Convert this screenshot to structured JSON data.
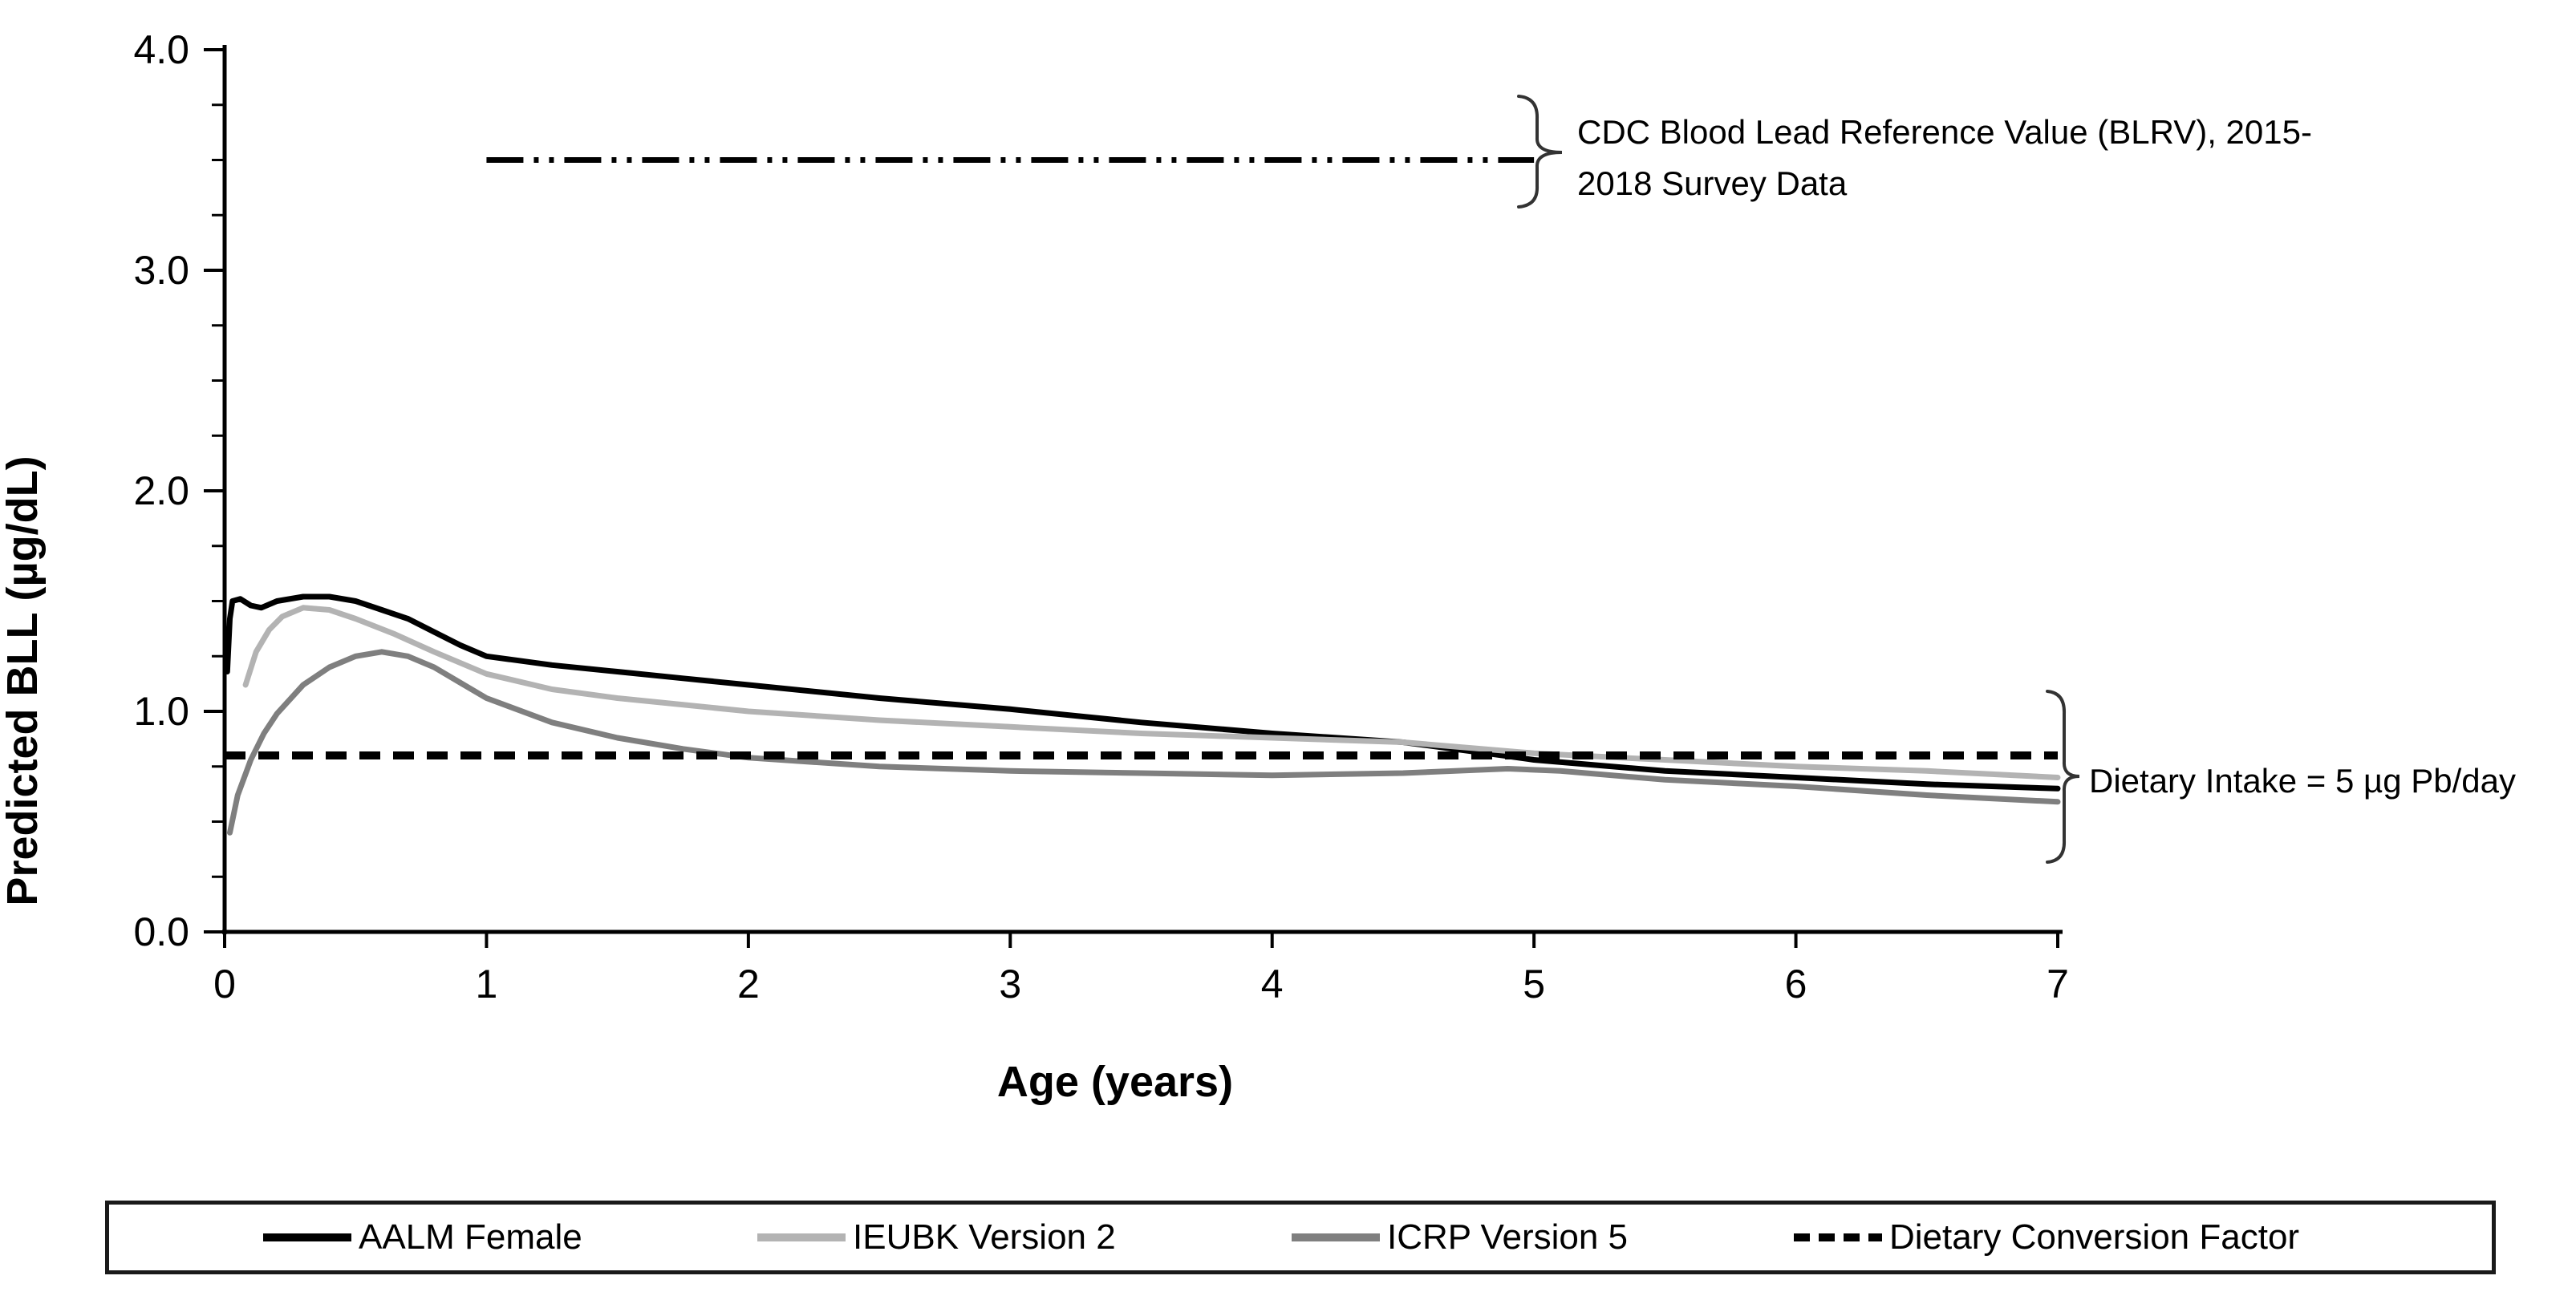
{
  "annotations": {
    "cdc": {
      "line1": "CDC Blood Lead Reference Value (BLRV), 2015-",
      "line2": "2018 Survey Data",
      "y_value": 3.5,
      "x_start": 1.0,
      "x_end": 5.0
    },
    "dietary": {
      "label": "Dietary Intake = 5 µg Pb/day",
      "y_value": 0.8
    }
  },
  "legend": {
    "items": [
      {
        "label": "AALM Female",
        "color": "#000000",
        "dash": null
      },
      {
        "label": "IEUBK Version 2",
        "color": "#b3b3b3",
        "dash": null
      },
      {
        "label": "ICRP Version 5",
        "color": "#7f7f7f",
        "dash": null
      },
      {
        "label": "Dietary Conversion Factor",
        "color": "#000000",
        "dash": "20 11"
      }
    ]
  },
  "chart_data": {
    "type": "line",
    "title": "",
    "xlabel": "Age (years)",
    "ylabel": "Predicted BLL (µg/dL)",
    "xlim": [
      0,
      7
    ],
    "ylim": [
      0,
      4
    ],
    "xticks": [
      0,
      1,
      2,
      3,
      4,
      5,
      6,
      7
    ],
    "yticks": [
      {
        "value": 0,
        "label": "0.0"
      },
      {
        "value": 1,
        "label": "1.0"
      },
      {
        "value": 2,
        "label": "2.0"
      },
      {
        "value": 3,
        "label": "3.0"
      },
      {
        "value": 4,
        "label": "4.0"
      }
    ],
    "y_minor_tick_step": 0.25,
    "grid": false,
    "legend_position": "bottom",
    "reference_lines": [
      {
        "name": "CDC Blood Lead Reference Value (BLRV)",
        "y": 3.5,
        "x_start": 1.0,
        "x_end": 5.0,
        "style": "dash-dot-dot",
        "color": "#000000"
      }
    ],
    "series": [
      {
        "name": "AALM Female",
        "color": "#000000",
        "style": "solid",
        "points": [
          [
            0.01,
            1.18
          ],
          [
            0.02,
            1.42
          ],
          [
            0.03,
            1.5
          ],
          [
            0.06,
            1.51
          ],
          [
            0.1,
            1.48
          ],
          [
            0.14,
            1.47
          ],
          [
            0.2,
            1.5
          ],
          [
            0.3,
            1.52
          ],
          [
            0.4,
            1.52
          ],
          [
            0.5,
            1.5
          ],
          [
            0.6,
            1.46
          ],
          [
            0.7,
            1.42
          ],
          [
            0.8,
            1.36
          ],
          [
            0.9,
            1.3
          ],
          [
            1.0,
            1.25
          ],
          [
            1.25,
            1.21
          ],
          [
            1.5,
            1.18
          ],
          [
            1.75,
            1.15
          ],
          [
            2.0,
            1.12
          ],
          [
            2.5,
            1.06
          ],
          [
            3.0,
            1.01
          ],
          [
            3.5,
            0.95
          ],
          [
            4.0,
            0.9
          ],
          [
            4.5,
            0.86
          ],
          [
            4.88,
            0.8
          ],
          [
            5.0,
            0.78
          ],
          [
            5.5,
            0.73
          ],
          [
            6.0,
            0.7
          ],
          [
            6.5,
            0.67
          ],
          [
            7.0,
            0.65
          ]
        ]
      },
      {
        "name": "IEUBK Version 2",
        "color": "#b3b3b3",
        "style": "solid",
        "points": [
          [
            0.08,
            1.12
          ],
          [
            0.12,
            1.27
          ],
          [
            0.17,
            1.37
          ],
          [
            0.22,
            1.43
          ],
          [
            0.3,
            1.47
          ],
          [
            0.4,
            1.46
          ],
          [
            0.5,
            1.42
          ],
          [
            0.65,
            1.35
          ],
          [
            0.8,
            1.27
          ],
          [
            1.0,
            1.17
          ],
          [
            1.25,
            1.1
          ],
          [
            1.5,
            1.06
          ],
          [
            2.0,
            1.0
          ],
          [
            2.5,
            0.96
          ],
          [
            3.0,
            0.93
          ],
          [
            3.5,
            0.9
          ],
          [
            4.0,
            0.88
          ],
          [
            4.5,
            0.86
          ],
          [
            5.0,
            0.81
          ],
          [
            5.5,
            0.78
          ],
          [
            6.0,
            0.75
          ],
          [
            6.5,
            0.73
          ],
          [
            7.0,
            0.7
          ]
        ]
      },
      {
        "name": "ICRP Version 5",
        "color": "#7f7f7f",
        "style": "solid",
        "points": [
          [
            0.02,
            0.45
          ],
          [
            0.05,
            0.62
          ],
          [
            0.1,
            0.78
          ],
          [
            0.15,
            0.9
          ],
          [
            0.2,
            0.99
          ],
          [
            0.3,
            1.12
          ],
          [
            0.4,
            1.2
          ],
          [
            0.5,
            1.25
          ],
          [
            0.6,
            1.27
          ],
          [
            0.7,
            1.25
          ],
          [
            0.8,
            1.2
          ],
          [
            0.9,
            1.13
          ],
          [
            1.0,
            1.06
          ],
          [
            1.25,
            0.95
          ],
          [
            1.5,
            0.88
          ],
          [
            1.75,
            0.83
          ],
          [
            2.0,
            0.79
          ],
          [
            2.5,
            0.75
          ],
          [
            3.0,
            0.73
          ],
          [
            3.5,
            0.72
          ],
          [
            4.0,
            0.71
          ],
          [
            4.5,
            0.72
          ],
          [
            4.9,
            0.74
          ],
          [
            5.1,
            0.73
          ],
          [
            5.5,
            0.69
          ],
          [
            6.0,
            0.66
          ],
          [
            6.5,
            0.62
          ],
          [
            7.0,
            0.59
          ]
        ]
      },
      {
        "name": "Dietary Conversion Factor",
        "color": "#000000",
        "style": "dashed",
        "points": [
          [
            0.0,
            0.8
          ],
          [
            7.0,
            0.8
          ]
        ]
      }
    ]
  }
}
